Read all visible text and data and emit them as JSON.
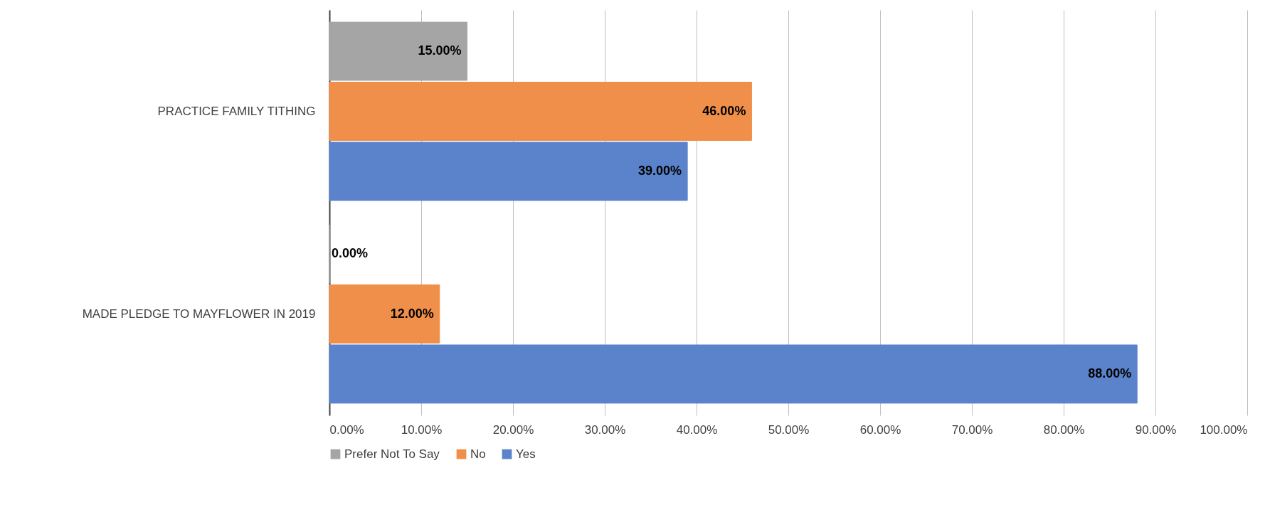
{
  "chart_data": {
    "type": "bar",
    "orientation": "horizontal",
    "categories": [
      "PRACTICE FAMILY TITHING",
      "MADE PLEDGE TO MAYFLOWER IN 2019"
    ],
    "series": [
      {
        "name": "Prefer Not To Say",
        "color": "#a5a5a5",
        "values": [
          15,
          0
        ],
        "value_labels": [
          "15.00%",
          "0.00%"
        ]
      },
      {
        "name": "No",
        "color": "#ef8f4a",
        "values": [
          46,
          12
        ],
        "value_labels": [
          "46.00%",
          "12.00%"
        ]
      },
      {
        "name": "Yes",
        "color": "#5a83cb",
        "values": [
          39,
          88
        ],
        "value_labels": [
          "39.00%",
          "88.00%"
        ]
      }
    ],
    "xlim": [
      0,
      100
    ],
    "xticks": [
      {
        "value": 0,
        "label": "0.00%"
      },
      {
        "value": 10,
        "label": "10.00%"
      },
      {
        "value": 20,
        "label": "20.00%"
      },
      {
        "value": 30,
        "label": "30.00%"
      },
      {
        "value": 40,
        "label": "40.00%"
      },
      {
        "value": 50,
        "label": "50.00%"
      },
      {
        "value": 60,
        "label": "60.00%"
      },
      {
        "value": 70,
        "label": "70.00%"
      },
      {
        "value": 80,
        "label": "80.00%"
      },
      {
        "value": 90,
        "label": "90.00%"
      },
      {
        "value": 100,
        "label": "100.00%"
      }
    ],
    "grid": "x",
    "legend": "bottom"
  }
}
